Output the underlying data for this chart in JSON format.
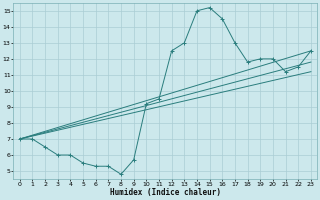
{
  "title": "",
  "xlabel": "Humidex (Indice chaleur)",
  "bg_color": "#cce8ec",
  "line_color": "#2a7d7d",
  "grid_color": "#aacdd4",
  "xlim": [
    -0.5,
    23.5
  ],
  "ylim": [
    4.5,
    15.5
  ],
  "xticks": [
    0,
    1,
    2,
    3,
    4,
    5,
    6,
    7,
    8,
    9,
    10,
    11,
    12,
    13,
    14,
    15,
    16,
    17,
    18,
    19,
    20,
    21,
    22,
    23
  ],
  "yticks": [
    5,
    6,
    7,
    8,
    9,
    10,
    11,
    12,
    13,
    14,
    15
  ],
  "lines": [
    {
      "x": [
        0,
        1,
        2,
        3,
        4,
        5,
        6,
        7,
        8,
        9,
        10,
        11,
        12,
        13,
        14,
        15,
        16,
        17,
        18,
        19,
        20,
        21,
        22,
        23
      ],
      "y": [
        7.0,
        7.0,
        6.5,
        6.0,
        6.0,
        5.5,
        5.3,
        5.3,
        4.8,
        5.7,
        9.2,
        9.5,
        12.5,
        13.0,
        15.0,
        15.2,
        14.5,
        13.0,
        11.8,
        12.0,
        12.0,
        11.2,
        11.5,
        12.5
      ]
    },
    {
      "x": [
        0,
        23
      ],
      "y": [
        7.0,
        12.5
      ]
    },
    {
      "x": [
        0,
        23
      ],
      "y": [
        7.0,
        11.8
      ]
    },
    {
      "x": [
        0,
        23
      ],
      "y": [
        7.0,
        11.2
      ]
    }
  ],
  "figsize": [
    3.2,
    2.0
  ],
  "dpi": 100
}
